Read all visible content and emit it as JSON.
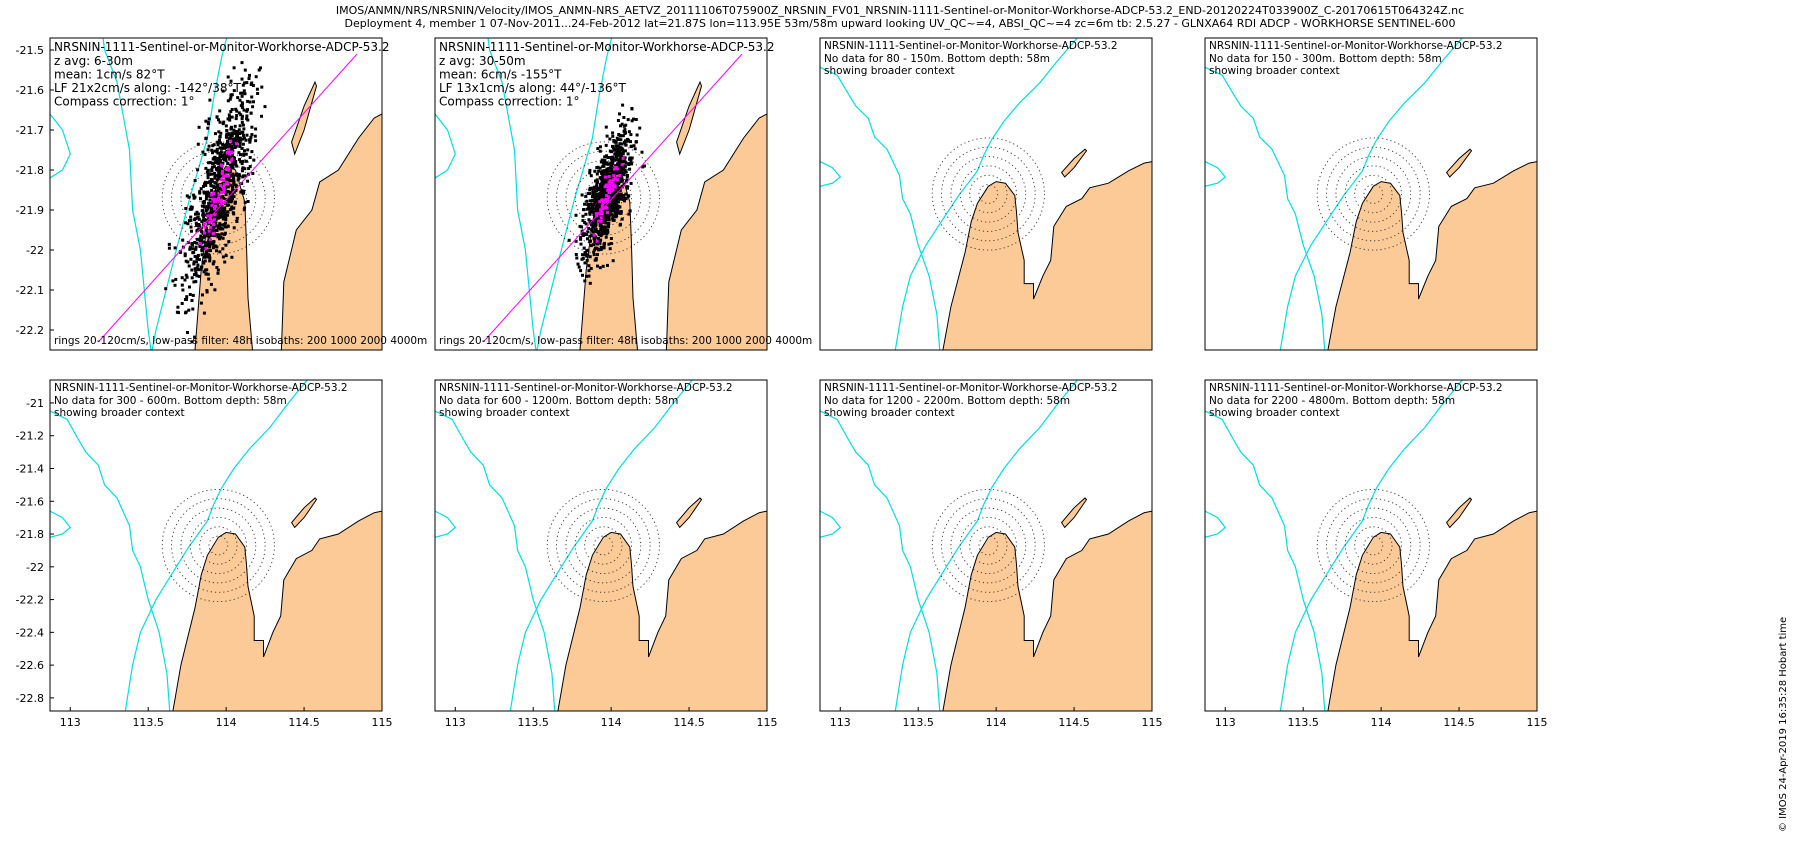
{
  "header": {
    "line1": "IMOS/ANMN/NRS/NRSNIN/Velocity/IMOS_ANMN-NRS_AETVZ_20111106T075900Z_NRSNIN_FV01_NRSNIN-1111-Sentinel-or-Monitor-Workhorse-ADCP-53.2_END-20120224T033900Z_C-20170615T064324Z.nc",
    "line2": "Deployment 4, member 1 07-Nov-2011...24-Feb-2012 lat=21.87S lon=113.95E 53m/58m upward looking UV_QC~=4, ABSI_QC~=4 zc=6m tb: 2.5.27 - GLNXA64 RDI ADCP - WORKHORSE SENTINEL-600"
  },
  "footer": "© IMOS 24-Apr-2019 16:35:28 Hobart time",
  "colors": {
    "land": "#fcca96",
    "isobath": "#00e0e0",
    "scatter": "#000000",
    "fit": "#ff00ff",
    "rings": "#333333"
  },
  "chart_data": [
    {
      "type": "scatter",
      "title": "NRSNIN-1111-Sentinel-or-Monitor-Workhorse-ADCP-53.2",
      "info": [
        "z avg: 6-30m",
        "mean: 1cm/s 82°T",
        "LF 21x2cm/s along: -142°/38°T",
        "Compass correction: 1°"
      ],
      "bottom_note": "rings 20-120cm/s, low-pass filter: 48h isobaths: 200 1000 2000 4000m",
      "xlim": [
        112.87,
        115.0
      ],
      "ylim": [
        -22.25,
        -21.47
      ],
      "xticks": [],
      "yticks": [
        -21.5,
        -21.6,
        -21.7,
        -21.8,
        -21.9,
        -22,
        -22.1,
        -22.2
      ],
      "site": [
        113.95,
        -21.87
      ],
      "rings_cm_s": [
        20,
        40,
        60,
        80,
        100,
        120
      ],
      "cloud": {
        "center": [
          113.96,
          -21.85
        ],
        "half_length": 0.33,
        "half_width": 0.06,
        "azimuth_deg": 38
      },
      "fit_line": [
        [
          113.18,
          -22.23
        ],
        [
          114.84,
          -21.51
        ]
      ],
      "has_data": true
    },
    {
      "type": "scatter",
      "title": "NRSNIN-1111-Sentinel-or-Monitor-Workhorse-ADCP-53.2",
      "info": [
        "z avg: 30-50m",
        "mean: 6cm/s -155°T",
        "LF 13x1cm/s along: 44°/-136°T",
        "Compass correction: 1°"
      ],
      "bottom_note": "rings 20-120cm/s, low-pass filter: 48h isobaths: 200 1000 2000 4000m",
      "xlim": [
        112.87,
        115.0
      ],
      "ylim": [
        -22.25,
        -21.47
      ],
      "xticks": [],
      "yticks": [],
      "site": [
        113.95,
        -21.87
      ],
      "rings_cm_s": [
        20,
        40,
        60,
        80,
        100,
        120
      ],
      "cloud": {
        "center": [
          113.98,
          -21.86
        ],
        "half_length": 0.21,
        "half_width": 0.045,
        "azimuth_deg": 44
      },
      "fit_line": [
        [
          113.18,
          -22.23
        ],
        [
          114.84,
          -21.51
        ]
      ],
      "has_data": true
    },
    {
      "type": "scatter",
      "title": "NRSNIN-1111-Sentinel-or-Monitor-Workhorse-ADCP-53.2",
      "info": [
        "No data for 80 - 150m. Bottom depth: 58m",
        "showing broader context"
      ],
      "bottom_note": "",
      "xlim": [
        112.87,
        115.0
      ],
      "ylim": [
        -22.88,
        -20.86
      ],
      "xticks": [],
      "yticks": [],
      "site": [
        113.95,
        -21.87
      ],
      "rings_cm_s": [
        20,
        40,
        60,
        80,
        100,
        120
      ],
      "has_data": false
    },
    {
      "type": "scatter",
      "title": "NRSNIN-1111-Sentinel-or-Monitor-Workhorse-ADCP-53.2",
      "info": [
        "No data for 150 - 300m. Bottom depth: 58m",
        "showing broader context"
      ],
      "bottom_note": "",
      "xlim": [
        112.87,
        115.0
      ],
      "ylim": [
        -22.88,
        -20.86
      ],
      "xticks": [],
      "yticks": [],
      "site": [
        113.95,
        -21.87
      ],
      "rings_cm_s": [
        20,
        40,
        60,
        80,
        100,
        120
      ],
      "has_data": false
    },
    {
      "type": "scatter",
      "title": "NRSNIN-1111-Sentinel-or-Monitor-Workhorse-ADCP-53.2",
      "info": [
        "No data for 300 - 600m. Bottom depth: 58m",
        "showing broader context"
      ],
      "bottom_note": "",
      "xlim": [
        112.87,
        115.0
      ],
      "ylim": [
        -22.88,
        -20.86
      ],
      "xticks": [
        113,
        113.5,
        114,
        114.5,
        115
      ],
      "yticks": [
        -21,
        -21.2,
        -21.4,
        -21.6,
        -21.8,
        -22,
        -22.2,
        -22.4,
        -22.6,
        -22.8
      ],
      "site": [
        113.95,
        -21.87
      ],
      "rings_cm_s": [
        20,
        40,
        60,
        80,
        100,
        120
      ],
      "has_data": false
    },
    {
      "type": "scatter",
      "title": "NRSNIN-1111-Sentinel-or-Monitor-Workhorse-ADCP-53.2",
      "info": [
        "No data for 600 - 1200m. Bottom depth: 58m",
        "showing broader context"
      ],
      "bottom_note": "",
      "xlim": [
        112.87,
        115.0
      ],
      "ylim": [
        -22.88,
        -20.86
      ],
      "xticks": [
        113,
        113.5,
        114,
        114.5,
        115
      ],
      "yticks": [],
      "site": [
        113.95,
        -21.87
      ],
      "rings_cm_s": [
        20,
        40,
        60,
        80,
        100,
        120
      ],
      "has_data": false
    },
    {
      "type": "scatter",
      "title": "NRSNIN-1111-Sentinel-or-Monitor-Workhorse-ADCP-53.2",
      "info": [
        "No data for 1200 - 2200m. Bottom depth: 58m",
        "showing broader context"
      ],
      "bottom_note": "",
      "xlim": [
        112.87,
        115.0
      ],
      "ylim": [
        -22.88,
        -20.86
      ],
      "xticks": [
        113,
        113.5,
        114,
        114.5,
        115
      ],
      "yticks": [],
      "site": [
        113.95,
        -21.87
      ],
      "rings_cm_s": [
        20,
        40,
        60,
        80,
        100,
        120
      ],
      "has_data": false
    },
    {
      "type": "scatter",
      "title": "NRSNIN-1111-Sentinel-or-Monitor-Workhorse-ADCP-53.2",
      "info": [
        "No data for 2200 - 4800m. Bottom depth: 58m",
        "showing broader context"
      ],
      "bottom_note": "",
      "xlim": [
        112.87,
        115.0
      ],
      "ylim": [
        -22.88,
        -20.86
      ],
      "xticks": [
        113,
        113.5,
        114,
        114.5,
        115
      ],
      "yticks": [],
      "site": [
        113.95,
        -21.87
      ],
      "rings_cm_s": [
        20,
        40,
        60,
        80,
        100,
        120
      ],
      "has_data": false
    }
  ]
}
